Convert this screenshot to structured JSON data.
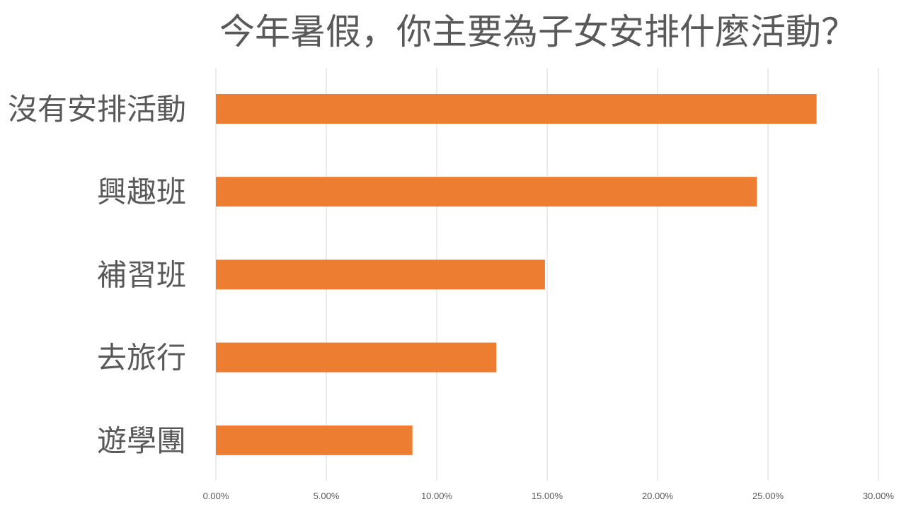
{
  "chart_data": {
    "type": "bar",
    "orientation": "horizontal",
    "title": "今年暑假，你主要為子女安排什麼活動？",
    "categories": [
      "沒有安排活動",
      "興趣班",
      "補習班",
      "去旅行",
      "遊學團"
    ],
    "values": [
      27.2,
      24.5,
      14.9,
      12.7,
      8.9
    ],
    "xlim": [
      0,
      30
    ],
    "x_ticks": [
      "0.00%",
      "5.00%",
      "10.00%",
      "15.00%",
      "20.00%",
      "25.00%",
      "30.00%"
    ],
    "xlabel": "",
    "ylabel": "",
    "grid": true,
    "legend": "none",
    "bar_color": "#ED7D31",
    "grid_color": "#D9D9D9",
    "text_color": "#595959"
  }
}
